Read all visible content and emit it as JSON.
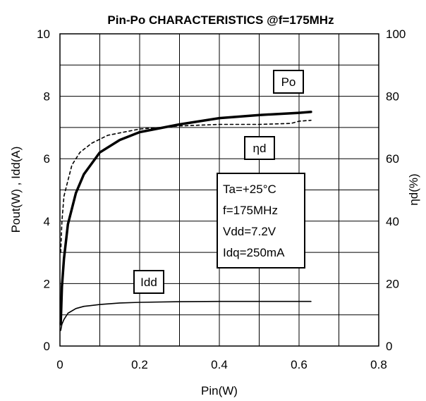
{
  "chart_data": {
    "type": "line",
    "title": "Pin-Po CHARACTERISTICS @f=175MHz",
    "xlabel": "Pin(W)",
    "ylabel": "Pout(W) , Idd(A)",
    "y2label": "ηd(%)",
    "xlim": [
      0,
      0.8
    ],
    "ylim": [
      0,
      10
    ],
    "y2lim": [
      0,
      100
    ],
    "xticks": [
      "0",
      "0.2",
      "0.4",
      "0.6",
      "0.8"
    ],
    "yticks": [
      "0",
      "2",
      "4",
      "6",
      "8",
      "10"
    ],
    "y2ticks": [
      "0",
      "20",
      "40",
      "60",
      "80",
      "100"
    ],
    "grid": true,
    "series": [
      {
        "name": "Po",
        "axis": "left",
        "style": "solid-thick",
        "x": [
          0.002,
          0.005,
          0.01,
          0.02,
          0.04,
          0.06,
          0.1,
          0.15,
          0.2,
          0.3,
          0.4,
          0.5,
          0.6,
          0.63
        ],
        "y": [
          0.7,
          1.9,
          2.8,
          3.9,
          4.9,
          5.5,
          6.2,
          6.6,
          6.85,
          7.1,
          7.3,
          7.4,
          7.47,
          7.5
        ]
      },
      {
        "name": "ηd",
        "axis": "right",
        "style": "dashed",
        "x": [
          0.002,
          0.005,
          0.01,
          0.02,
          0.03,
          0.05,
          0.08,
          0.12,
          0.16,
          0.2,
          0.25,
          0.3,
          0.4,
          0.5,
          0.58,
          0.6,
          0.63
        ],
        "y": [
          30,
          40,
          48,
          53,
          58,
          62,
          65,
          67.5,
          68.5,
          69.5,
          70,
          70.5,
          71,
          71,
          71.3,
          72,
          72.3
        ]
      },
      {
        "name": "Idd",
        "axis": "left",
        "style": "solid-thin",
        "x": [
          0.002,
          0.005,
          0.01,
          0.02,
          0.04,
          0.06,
          0.1,
          0.15,
          0.2,
          0.3,
          0.4,
          0.5,
          0.6,
          0.63
        ],
        "y": [
          0.5,
          0.7,
          0.85,
          1.05,
          1.2,
          1.27,
          1.33,
          1.38,
          1.4,
          1.42,
          1.43,
          1.43,
          1.43,
          1.43
        ]
      }
    ],
    "annotations": {
      "po_label": "Po",
      "eta_label": "ηd",
      "idd_label": "Idd",
      "conditions": [
        "Ta=+25°C",
        "f=175MHz",
        "Vdd=7.2V",
        "Idq=250mA"
      ]
    }
  }
}
